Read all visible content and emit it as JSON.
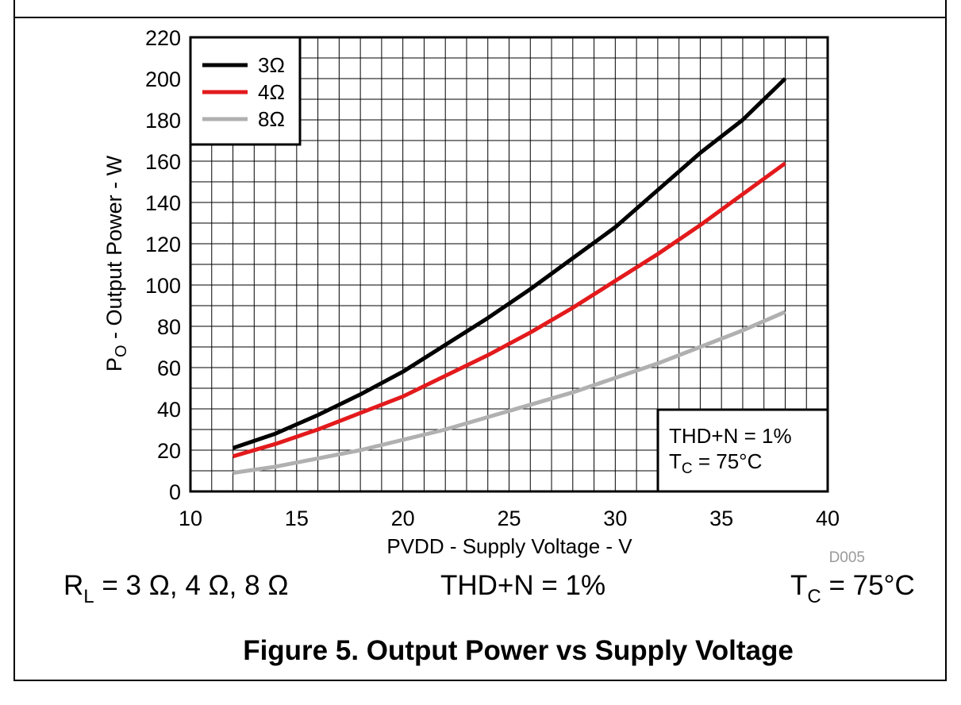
{
  "chart_data": {
    "type": "line",
    "xlabel": "PVDD - Supply Voltage - V",
    "ylabel_main": "P",
    "ylabel_sub": "O",
    "ylabel_rest": " - Output Power - W",
    "xlim": [
      10,
      40
    ],
    "ylim": [
      0,
      220
    ],
    "x_ticks": [
      10,
      15,
      20,
      25,
      30,
      35,
      40
    ],
    "y_ticks": [
      0,
      20,
      40,
      60,
      80,
      100,
      120,
      140,
      160,
      180,
      200,
      220
    ],
    "grid": "on",
    "x_minor_step": 1,
    "y_minor_step": 10,
    "legend_position": "top-left",
    "figure_id": "D005",
    "annotation": {
      "line1": "THD+N = 1%",
      "line2_main": "T",
      "line2_sub": "C",
      "line2_rest": " = 75°C",
      "position": "bottom-right"
    },
    "series": [
      {
        "name": "3Ω",
        "color": "#000000",
        "x": [
          12,
          14,
          16,
          18,
          20,
          22,
          24,
          26,
          28,
          30,
          32,
          34,
          36,
          38
        ],
        "y": [
          21,
          28,
          37,
          47,
          58,
          71,
          84,
          98,
          113,
          128,
          146,
          164,
          180,
          200
        ]
      },
      {
        "name": "4Ω",
        "color": "#e31a1c",
        "x": [
          12,
          14,
          16,
          18,
          20,
          22,
          24,
          26,
          28,
          30,
          32,
          34,
          36,
          38
        ],
        "y": [
          17,
          23,
          30,
          38,
          46,
          56,
          66,
          77,
          89,
          102,
          115,
          129,
          144,
          159
        ]
      },
      {
        "name": "8Ω",
        "color": "#b0b0b0",
        "x": [
          12,
          14,
          16,
          18,
          20,
          22,
          24,
          26,
          28,
          30,
          32,
          34,
          36,
          38
        ],
        "y": [
          9,
          12,
          16,
          20,
          25,
          30,
          36,
          42,
          48,
          55,
          62,
          70,
          78,
          87
        ]
      }
    ]
  },
  "conditions": {
    "rl_main": "R",
    "rl_sub": "L",
    "rl_rest": " = 3 Ω, 4 Ω, 8 Ω",
    "thd": "THD+N = 1%",
    "tc_main": "T",
    "tc_sub": "C",
    "tc_rest": " = 75°C"
  },
  "caption": "Figure 5. Output Power vs Supply Voltage"
}
